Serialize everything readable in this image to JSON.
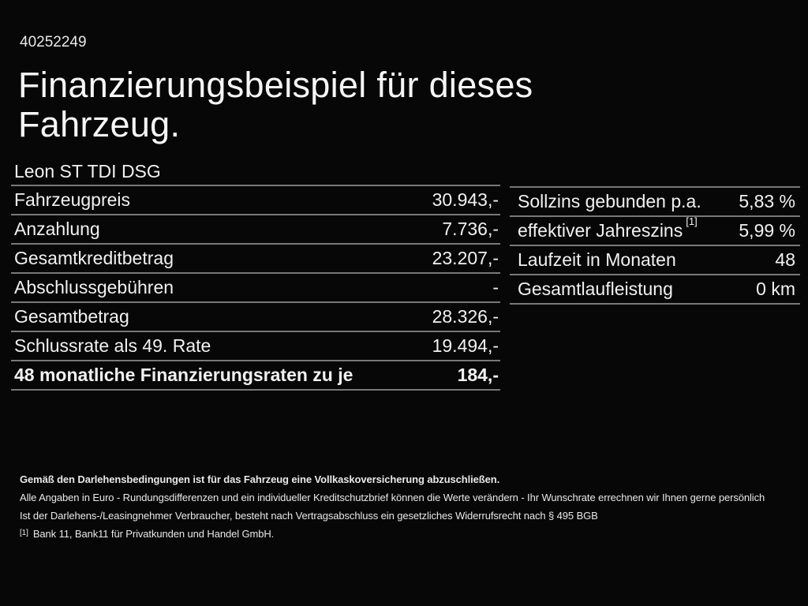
{
  "document": {
    "reference_number": "40252249",
    "title_line1": "Finanzierungsbeispiel für dieses",
    "title_line2": "Fahrzeug.",
    "vehicle_name": "Leon ST TDI DSG"
  },
  "financing_table": {
    "rows": [
      {
        "label": "Fahrzeugpreis",
        "value": "30.943,-"
      },
      {
        "label": "Anzahlung",
        "value": "7.736,-"
      },
      {
        "label": "Gesamtkreditbetrag",
        "value": "23.207,-"
      },
      {
        "label": "Abschlussgebühren",
        "value": "-"
      },
      {
        "label": "Gesamtbetrag",
        "value": "28.326,-"
      },
      {
        "label": "Schlussrate als 49. Rate",
        "value": "19.494,-"
      },
      {
        "label": "48 monatliche Finanzierungsraten zu je",
        "value": "184,-"
      }
    ]
  },
  "conditions_table": {
    "rows": [
      {
        "label": "Sollzins gebunden p.a.",
        "value": "5,83 %"
      },
      {
        "label": "effektiver Jahreszins",
        "footnote_marker": "[1]",
        "value": "5,99 %"
      },
      {
        "label": "Laufzeit in Monaten",
        "value": "48"
      },
      {
        "label": "Gesamtlaufleistung",
        "value": "0 km"
      }
    ]
  },
  "footer": {
    "insurance_note": "Gemäß den Darlehensbedingungen ist für das Fahrzeug eine Vollkaskoversicherung abzuschließen.",
    "disclaimer_line1": "Alle Angaben in Euro - Rundungsdifferenzen und ein individueller Kreditschutzbrief können die Werte verändern - Ihr Wunschrate errechnen wir Ihnen gerne persönlich",
    "disclaimer_line2": "Ist der Darlehens-/Leasingnehmer Verbraucher, besteht nach Vertragsabschluss ein gesetzliches Widerrufsrecht nach § 495 BGB",
    "footnote_marker": "[1]",
    "footnote_text": "Bank 11, Bank11 für Privatkunden und Handel GmbH."
  },
  "colors": {
    "background": "#070707",
    "text": "#f1f1f1",
    "divider": "#787878"
  }
}
